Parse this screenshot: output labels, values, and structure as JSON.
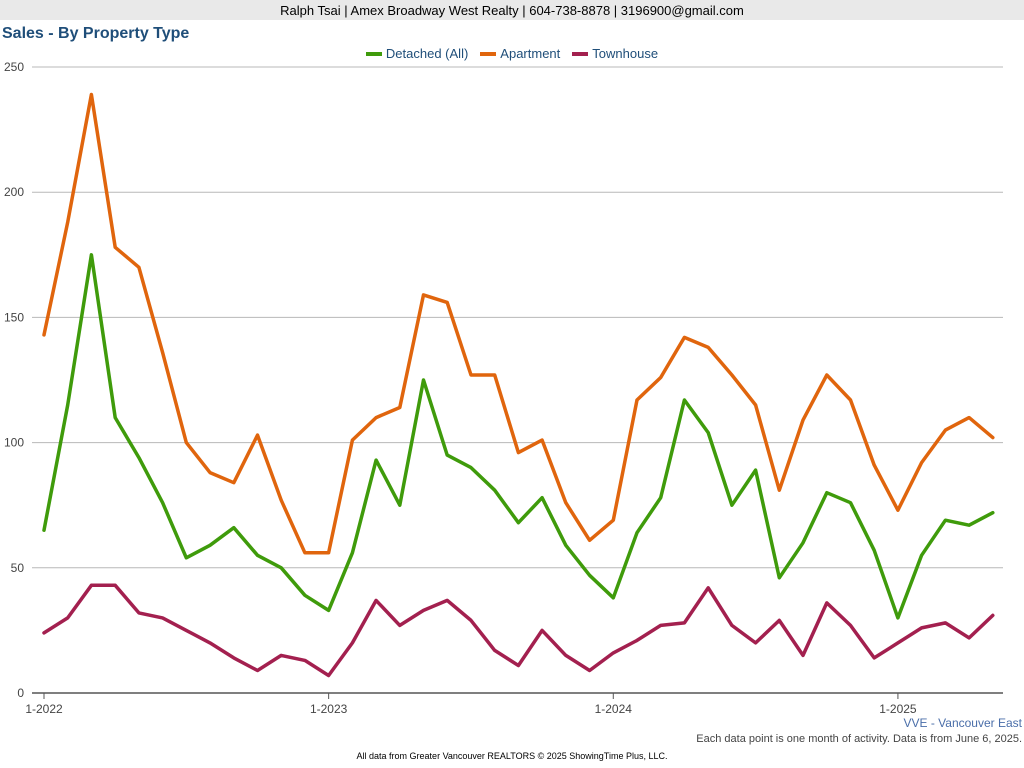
{
  "header": {
    "banner": "Ralph Tsai | Amex Broadway West Realty | 604-738-8878 | 3196900@gmail.com"
  },
  "region_label": "VVE - Vancouver East",
  "data_note": "Each data point is one month of activity. Data is from June 6, 2025.",
  "footer": "All data from Greater Vancouver REALTORS © 2025 ShowingTime Plus, LLC.",
  "chart_data": {
    "type": "line",
    "title": "Sales - By Property Type",
    "xlabel": "",
    "ylabel": "",
    "ylim": [
      0,
      250
    ],
    "yticks": [
      "0",
      "50",
      "100",
      "150",
      "200",
      "250"
    ],
    "xticks": [
      {
        "index": 0,
        "label": "1-2022"
      },
      {
        "index": 12,
        "label": "1-2023"
      },
      {
        "index": 24,
        "label": "1-2024"
      },
      {
        "index": 36,
        "label": "1-2025"
      }
    ],
    "x": [
      "2022-01",
      "2022-02",
      "2022-03",
      "2022-04",
      "2022-05",
      "2022-06",
      "2022-07",
      "2022-08",
      "2022-09",
      "2022-10",
      "2022-11",
      "2022-12",
      "2023-01",
      "2023-02",
      "2023-03",
      "2023-04",
      "2023-05",
      "2023-06",
      "2023-07",
      "2023-08",
      "2023-09",
      "2023-10",
      "2023-11",
      "2023-12",
      "2024-01",
      "2024-02",
      "2024-03",
      "2024-04",
      "2024-05",
      "2024-06",
      "2024-07",
      "2024-08",
      "2024-09",
      "2024-10",
      "2024-11",
      "2024-12",
      "2025-01",
      "2025-02",
      "2025-03",
      "2025-04",
      "2025-05"
    ],
    "grid": true,
    "legend_position": "top-center",
    "series": [
      {
        "name": "Detached (All)",
        "color": "#3f9b0b",
        "values": [
          65,
          115,
          175,
          110,
          94,
          76,
          54,
          59,
          66,
          55,
          50,
          39,
          33,
          56,
          93,
          75,
          125,
          95,
          90,
          81,
          68,
          78,
          59,
          47,
          38,
          64,
          78,
          117,
          104,
          75,
          89,
          46,
          60,
          80,
          76,
          57,
          30,
          55,
          69,
          67,
          72
        ]
      },
      {
        "name": "Apartment",
        "color": "#e0650d",
        "values": [
          143,
          188,
          239,
          178,
          170,
          136,
          100,
          88,
          84,
          103,
          77,
          56,
          56,
          101,
          110,
          114,
          159,
          156,
          127,
          127,
          96,
          101,
          76,
          61,
          69,
          117,
          126,
          142,
          138,
          127,
          115,
          81,
          109,
          127,
          117,
          91,
          73,
          92,
          105,
          110,
          102
        ]
      },
      {
        "name": "Townhouse",
        "color": "#a3204f",
        "values": [
          24,
          30,
          43,
          43,
          32,
          30,
          25,
          20,
          14,
          9,
          15,
          13,
          7,
          20,
          37,
          27,
          33,
          37,
          29,
          17,
          11,
          25,
          15,
          9,
          16,
          21,
          27,
          28,
          42,
          27,
          20,
          29,
          15,
          36,
          27,
          14,
          20,
          26,
          28,
          22,
          31
        ]
      }
    ]
  }
}
